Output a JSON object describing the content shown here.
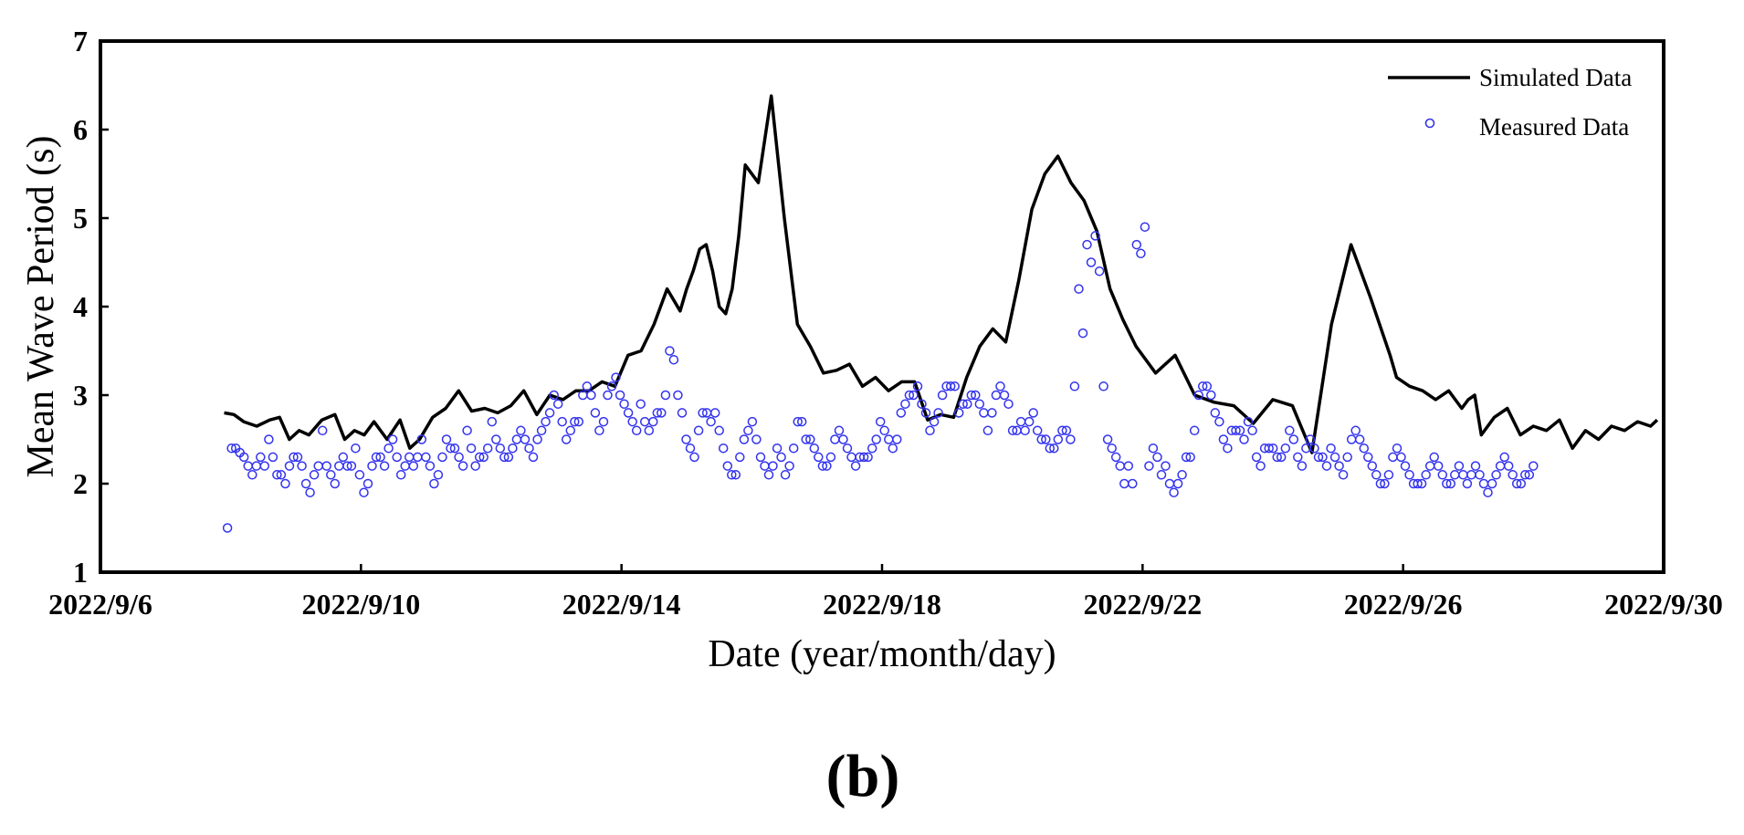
{
  "chart_data": {
    "type": "line",
    "xlabel": "Date (year/month/day)",
    "ylabel": "Mean Wave Period (s)",
    "panel_label": "(b)",
    "ylim": [
      1,
      7
    ],
    "xlim_days": [
      0,
      24
    ],
    "x_origin_date": "2022/9/6",
    "x_unit": "days since 2022/9/6",
    "yticks": [
      1,
      2,
      3,
      4,
      5,
      6,
      7
    ],
    "ytick_labels": [
      "1",
      "2",
      "3",
      "4",
      "5",
      "6",
      "7"
    ],
    "xticks": [
      0,
      4,
      8,
      12,
      16,
      20,
      24
    ],
    "xtick_labels": [
      "2022/9/6",
      "2022/9/10",
      "2022/9/14",
      "2022/9/18",
      "2022/9/22",
      "2022/9/26",
      "2022/9/30"
    ],
    "legend_position": "top-right",
    "series": [
      {
        "name": "Simulated Data",
        "kind": "line",
        "color": "#000000",
        "x": [
          2.0,
          2.15,
          2.3,
          2.5,
          2.7,
          2.85,
          3.0,
          3.15,
          3.3,
          3.5,
          3.7,
          3.85,
          4.0,
          4.15,
          4.3,
          4.5,
          4.7,
          4.85,
          5.0,
          5.2,
          5.4,
          5.6,
          5.8,
          6.0,
          6.2,
          6.4,
          6.6,
          6.8,
          7.0,
          7.2,
          7.4,
          7.6,
          7.8,
          8.0,
          8.2,
          8.4,
          8.6,
          8.8,
          9.0,
          9.1,
          9.2,
          9.3,
          9.4,
          9.5,
          9.6,
          9.7,
          9.8,
          9.9,
          10.0,
          10.2,
          10.4,
          10.6,
          10.8,
          11.0,
          11.2,
          11.4,
          11.6,
          11.8,
          12.0,
          12.2,
          12.4,
          12.6,
          12.8,
          13.0,
          13.2,
          13.4,
          13.6,
          13.8,
          14.0,
          14.2,
          14.4,
          14.6,
          14.8,
          15.0,
          15.2,
          15.4,
          15.6,
          15.8,
          16.0,
          16.3,
          16.6,
          16.9,
          17.2,
          17.5,
          17.8,
          18.1,
          18.4,
          18.7,
          19.0,
          19.3,
          19.6,
          19.9,
          20.0,
          20.2,
          20.4,
          20.6,
          20.8,
          21.0,
          21.1,
          21.2,
          21.3,
          21.5,
          21.7,
          21.9,
          22.1,
          22.3,
          22.5,
          22.7,
          22.9,
          23.1,
          23.3,
          23.5,
          23.7,
          23.9,
          24.0
        ],
        "y": [
          2.8,
          2.78,
          2.7,
          2.65,
          2.72,
          2.75,
          2.5,
          2.6,
          2.55,
          2.72,
          2.78,
          2.5,
          2.6,
          2.55,
          2.7,
          2.5,
          2.72,
          2.4,
          2.5,
          2.75,
          2.85,
          3.05,
          2.82,
          2.85,
          2.8,
          2.88,
          3.05,
          2.78,
          3.0,
          2.95,
          3.05,
          3.05,
          3.15,
          3.1,
          3.45,
          3.5,
          3.8,
          4.2,
          3.95,
          4.2,
          4.4,
          4.65,
          4.7,
          4.4,
          4.0,
          3.92,
          4.2,
          4.8,
          5.6,
          5.4,
          6.38,
          5.0,
          3.8,
          3.55,
          3.25,
          3.28,
          3.35,
          3.1,
          3.2,
          3.05,
          3.15,
          3.15,
          2.72,
          2.78,
          2.75,
          3.2,
          3.55,
          3.75,
          3.6,
          4.3,
          5.1,
          5.5,
          5.7,
          5.4,
          5.2,
          4.85,
          4.2,
          3.85,
          3.55,
          3.25,
          3.45,
          3.0,
          2.92,
          2.88,
          2.68,
          2.95,
          2.88,
          2.35,
          3.8,
          4.7,
          4.1,
          3.45,
          3.2,
          3.1,
          3.05,
          2.95,
          3.05,
          2.85,
          2.95,
          3.0,
          2.55,
          2.75,
          2.85,
          2.55,
          2.65,
          2.6,
          2.72,
          2.4,
          2.6,
          2.5,
          2.65,
          2.6,
          2.7,
          2.65,
          2.72
        ],
        "x_offset": -0.1
      },
      {
        "name": "Measured Data",
        "kind": "scatter",
        "color": "#3333ee",
        "values_y": [
          1.5,
          2.4,
          2.4,
          2.35,
          2.3,
          2.2,
          2.1,
          2.2,
          2.3,
          2.2,
          2.5,
          2.3,
          2.1,
          2.1,
          2.0,
          2.2,
          2.3,
          2.3,
          2.2,
          2.0,
          1.9,
          2.1,
          2.2,
          2.6,
          2.2,
          2.1,
          2.0,
          2.2,
          2.3,
          2.2,
          2.2,
          2.4,
          2.1,
          1.9,
          2.0,
          2.2,
          2.3,
          2.3,
          2.2,
          2.4,
          2.5,
          2.3,
          2.1,
          2.2,
          2.3,
          2.2,
          2.3,
          2.5,
          2.3,
          2.2,
          2.0,
          2.1,
          2.3,
          2.5,
          2.4,
          2.4,
          2.3,
          2.2,
          2.6,
          2.4,
          2.2,
          2.3,
          2.3,
          2.4,
          2.7,
          2.5,
          2.4,
          2.3,
          2.3,
          2.4,
          2.5,
          2.6,
          2.5,
          2.4,
          2.3,
          2.5,
          2.6,
          2.7,
          2.8,
          3.0,
          2.9,
          2.7,
          2.5,
          2.6,
          2.7,
          2.7,
          3.0,
          3.1,
          3.0,
          2.8,
          2.6,
          2.7,
          3.0,
          3.1,
          3.2,
          3.0,
          2.9,
          2.8,
          2.7,
          2.6,
          2.9,
          2.7,
          2.6,
          2.7,
          2.8,
          2.8,
          3.0,
          3.5,
          3.4,
          3.0,
          2.8,
          2.5,
          2.4,
          2.3,
          2.6,
          2.8,
          2.8,
          2.7,
          2.8,
          2.6,
          2.4,
          2.2,
          2.1,
          2.1,
          2.3,
          2.5,
          2.6,
          2.7,
          2.5,
          2.3,
          2.2,
          2.1,
          2.2,
          2.4,
          2.3,
          2.1,
          2.2,
          2.4,
          2.7,
          2.7,
          2.5,
          2.5,
          2.4,
          2.3,
          2.2,
          2.2,
          2.3,
          2.5,
          2.6,
          2.5,
          2.4,
          2.3,
          2.2,
          2.3,
          2.3,
          2.3,
          2.4,
          2.5,
          2.7,
          2.6,
          2.5,
          2.4,
          2.5,
          2.8,
          2.9,
          3.0,
          3.0,
          3.1,
          2.9,
          2.8,
          2.6,
          2.7,
          2.8,
          3.0,
          3.1,
          3.1,
          3.1,
          2.8,
          2.9,
          2.9,
          3.0,
          3.0,
          2.9,
          2.8,
          2.6,
          2.8,
          3.0,
          3.1,
          3.0,
          2.9,
          2.6,
          2.6,
          2.7,
          2.6,
          2.7,
          2.8,
          2.6,
          2.5,
          2.5,
          2.4,
          2.4,
          2.5,
          2.6,
          2.6,
          2.5,
          3.1,
          4.2,
          3.7,
          4.7,
          4.5,
          4.8,
          4.4,
          3.1,
          2.5,
          2.4,
          2.3,
          2.2,
          2.0,
          2.2,
          2.0,
          4.7,
          4.6,
          4.9,
          2.2,
          2.4,
          2.3,
          2.1,
          2.2,
          2.0,
          1.9,
          2.0,
          2.1,
          2.3,
          2.3,
          2.6,
          3.0,
          3.1,
          3.1,
          3.0,
          2.8,
          2.7,
          2.5,
          2.4,
          2.6,
          2.6,
          2.6,
          2.5,
          2.7,
          2.6,
          2.3,
          2.2,
          2.4,
          2.4,
          2.4,
          2.3,
          2.3,
          2.4,
          2.6,
          2.5,
          2.3,
          2.2,
          2.4,
          2.5,
          2.4,
          2.3,
          2.3,
          2.2,
          2.4,
          2.3,
          2.2,
          2.1,
          2.3,
          2.5,
          2.6,
          2.5,
          2.4,
          2.3,
          2.2,
          2.1,
          2.0,
          2.0,
          2.1,
          2.3,
          2.4,
          2.3,
          2.2,
          2.1,
          2.0,
          2.0,
          2.0,
          2.1,
          2.2,
          2.3,
          2.2,
          2.1,
          2.0,
          2.0,
          2.1,
          2.2,
          2.1,
          2.0,
          2.1,
          2.2,
          2.1,
          2.0,
          1.9,
          2.0,
          2.1,
          2.2,
          2.3,
          2.2,
          2.1,
          2.0,
          2.0,
          2.1,
          2.1,
          2.2
        ],
        "x_start": 1.95,
        "x_end": 22.0
      }
    ]
  }
}
